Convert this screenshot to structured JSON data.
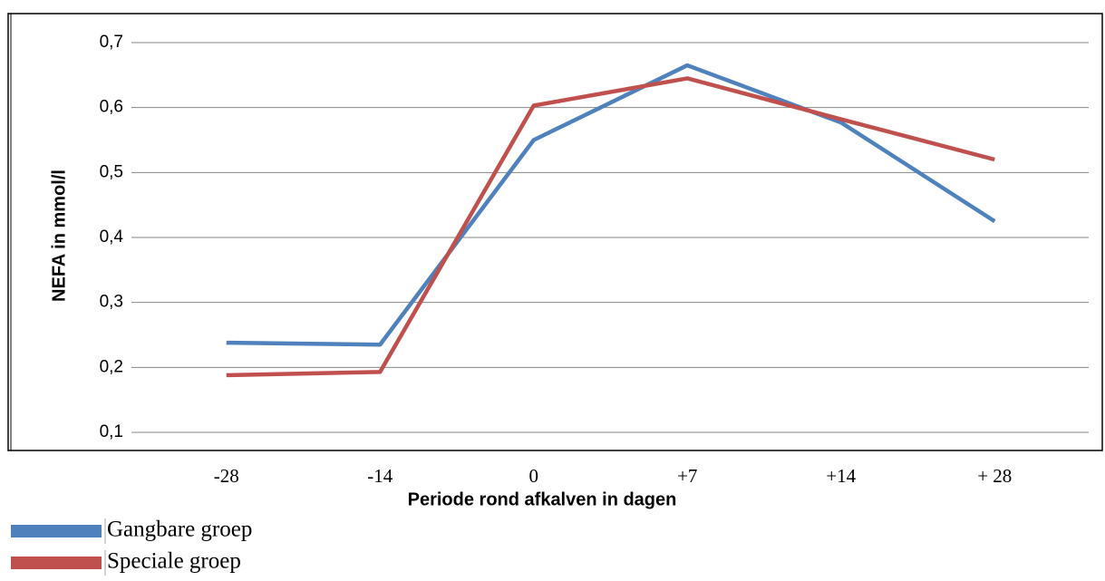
{
  "chart_data": {
    "type": "line",
    "xlabel": "Periode rond afkalven in dagen",
    "ylabel": "NEFA  in mmol/l",
    "categories": [
      "-28",
      "-14",
      "0",
      "+7",
      "+14",
      "+ 28"
    ],
    "series": [
      {
        "name": "Gangbare groep",
        "color": "#4f81bd",
        "values": [
          0.238,
          0.235,
          0.55,
          0.665,
          0.577,
          0.425
        ]
      },
      {
        "name": "Speciale groep",
        "color": "#c0504d",
        "values": [
          0.188,
          0.193,
          0.603,
          0.645,
          0.582,
          0.52
        ]
      }
    ],
    "ylim": [
      0.1,
      0.7
    ],
    "yticks": [
      {
        "value": 0.1,
        "label": "0,1"
      },
      {
        "value": 0.2,
        "label": "0,2"
      },
      {
        "value": 0.3,
        "label": "0,3"
      },
      {
        "value": 0.4,
        "label": "0,4"
      },
      {
        "value": 0.5,
        "label": "0,5"
      },
      {
        "value": 0.6,
        "label": "0,6"
      },
      {
        "value": 0.7,
        "label": "0,7"
      }
    ],
    "grid": true
  }
}
